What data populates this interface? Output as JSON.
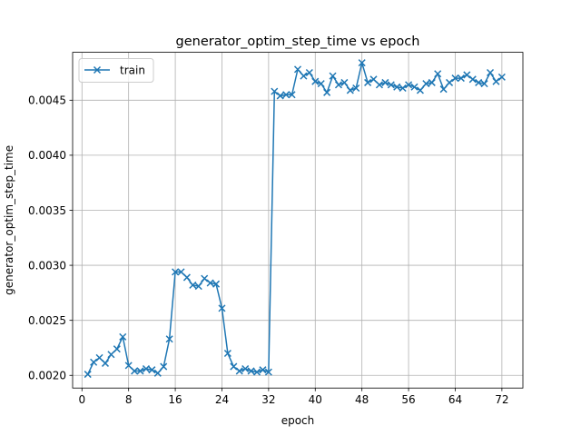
{
  "chart_data": {
    "type": "line",
    "title": "generator_optim_step_time vs epoch",
    "xlabel": "epoch",
    "ylabel": "generator_optim_step_time",
    "xlim": [
      -1.6,
      75.6
    ],
    "ylim": [
      0.001885,
      0.004935
    ],
    "xticks": [
      0,
      8,
      16,
      24,
      32,
      40,
      48,
      56,
      64,
      72
    ],
    "yticks": [
      0.002,
      0.0025,
      0.003,
      0.0035,
      0.004,
      0.0045
    ],
    "ytick_labels": [
      "0.0020",
      "0.0025",
      "0.0030",
      "0.0035",
      "0.0040",
      "0.0045"
    ],
    "grid": true,
    "legend_position": "top-left",
    "marker": "x",
    "color": "#1f77b4",
    "series": [
      {
        "name": "train",
        "x": [
          1,
          2,
          3,
          4,
          5,
          6,
          7,
          8,
          9,
          10,
          11,
          12,
          13,
          14,
          15,
          16,
          17,
          18,
          19,
          20,
          21,
          22,
          23,
          24,
          25,
          26,
          27,
          28,
          29,
          30,
          31,
          32,
          33,
          34,
          35,
          36,
          37,
          38,
          39,
          40,
          41,
          42,
          43,
          44,
          45,
          46,
          47,
          48,
          49,
          50,
          51,
          52,
          53,
          54,
          55,
          56,
          57,
          58,
          59,
          60,
          61,
          62,
          63,
          64,
          65,
          66,
          67,
          68,
          69,
          70,
          71,
          72
        ],
        "values": [
          0.00201,
          0.00212,
          0.00216,
          0.00211,
          0.00219,
          0.00224,
          0.00235,
          0.00209,
          0.00204,
          0.00204,
          0.00206,
          0.00205,
          0.00202,
          0.00208,
          0.00233,
          0.00294,
          0.00294,
          0.00289,
          0.00282,
          0.00281,
          0.00288,
          0.00284,
          0.00283,
          0.00261,
          0.0022,
          0.00208,
          0.00204,
          0.00206,
          0.00204,
          0.00203,
          0.00205,
          0.00203,
          0.00458,
          0.00454,
          0.00455,
          0.00455,
          0.00478,
          0.00472,
          0.00475,
          0.00467,
          0.00465,
          0.00457,
          0.00472,
          0.00464,
          0.00466,
          0.00459,
          0.00461,
          0.00484,
          0.00466,
          0.00469,
          0.00464,
          0.00466,
          0.00464,
          0.00462,
          0.00461,
          0.00464,
          0.00462,
          0.00459,
          0.00465,
          0.00466,
          0.00474,
          0.0046,
          0.00466,
          0.0047,
          0.0047,
          0.00473,
          0.00469,
          0.00466,
          0.00465,
          0.00475,
          0.00467,
          0.00471
        ]
      }
    ]
  }
}
